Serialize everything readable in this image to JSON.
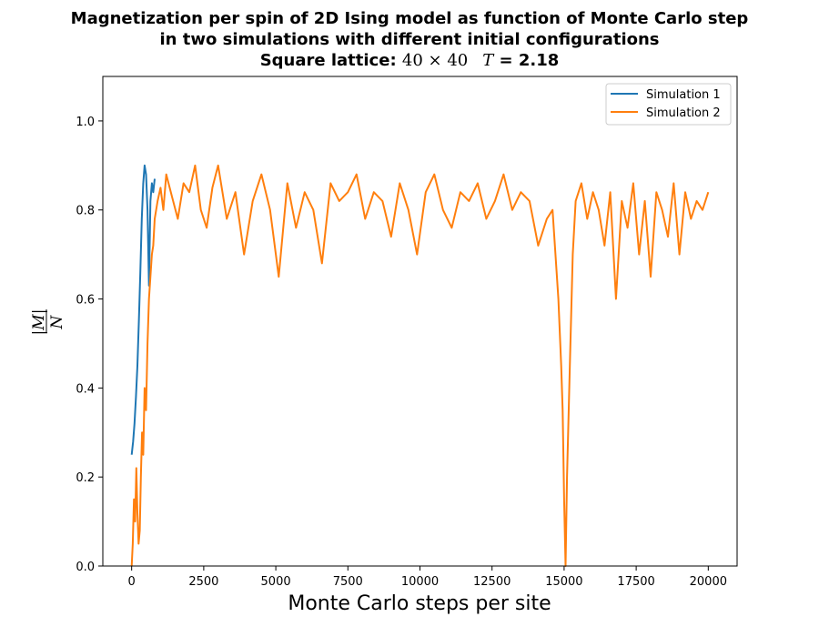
{
  "title": {
    "line1": "Magnetization per spin of 2D Ising model as function of Monte Carlo step",
    "line2": "in two simulations with different initial configurations",
    "line3_prefix": "Square lattice: ",
    "line3_lattice": "40 × 40",
    "line3_T_symbol": "T",
    "line3_T_value": " = 2.18"
  },
  "chart_data": {
    "type": "line",
    "xlabel": "Monte Carlo steps per site",
    "ylabel_num": "|M|",
    "ylabel_den": "N",
    "xlim": [
      -1000,
      21000
    ],
    "ylim": [
      0,
      1.1
    ],
    "xticks": [
      0,
      2500,
      5000,
      7500,
      10000,
      12500,
      15000,
      17500,
      20000
    ],
    "yticks": [
      0.0,
      0.2,
      0.4,
      0.6,
      0.8,
      1.0
    ],
    "xtick_labels": [
      "0",
      "2500",
      "5000",
      "7500",
      "10000",
      "12500",
      "15000",
      "17500",
      "20000"
    ],
    "ytick_labels": [
      "0.0",
      "0.2",
      "0.4",
      "0.6",
      "0.8",
      "1.0"
    ],
    "grid": false,
    "legend_position": "top-right",
    "series": [
      {
        "name": "Simulation 1",
        "color": "#1f77b4",
        "x": [
          0,
          50,
          100,
          150,
          200,
          250,
          300,
          350,
          400,
          450,
          500,
          550,
          600,
          650,
          700,
          750,
          800
        ],
        "y": [
          0.25,
          0.28,
          0.32,
          0.38,
          0.45,
          0.55,
          0.66,
          0.78,
          0.86,
          0.9,
          0.88,
          0.8,
          0.63,
          0.82,
          0.86,
          0.84,
          0.87
        ]
      },
      {
        "name": "Simulation 2",
        "color": "#ff7f0e",
        "x": [
          0,
          40,
          80,
          120,
          160,
          200,
          240,
          280,
          320,
          360,
          400,
          450,
          500,
          550,
          600,
          650,
          700,
          750,
          800,
          900,
          1000,
          1100,
          1200,
          1400,
          1600,
          1800,
          2000,
          2200,
          2400,
          2600,
          2800,
          3000,
          3300,
          3600,
          3900,
          4200,
          4500,
          4800,
          5100,
          5400,
          5700,
          6000,
          6300,
          6600,
          6900,
          7200,
          7500,
          7800,
          8100,
          8400,
          8700,
          9000,
          9300,
          9600,
          9900,
          10200,
          10500,
          10800,
          11100,
          11400,
          11700,
          12000,
          12300,
          12600,
          12900,
          13200,
          13500,
          13800,
          14100,
          14400,
          14600,
          14700,
          14800,
          14900,
          14950,
          15000,
          15050,
          15100,
          15200,
          15300,
          15400,
          15600,
          15800,
          16000,
          16200,
          16400,
          16600,
          16800,
          17000,
          17200,
          17400,
          17600,
          17800,
          18000,
          18200,
          18400,
          18600,
          18800,
          19000,
          19200,
          19400,
          19600,
          19800,
          20000
        ],
        "y": [
          0.0,
          0.05,
          0.15,
          0.1,
          0.22,
          0.12,
          0.05,
          0.08,
          0.2,
          0.3,
          0.25,
          0.4,
          0.35,
          0.5,
          0.6,
          0.65,
          0.7,
          0.72,
          0.78,
          0.82,
          0.85,
          0.8,
          0.88,
          0.83,
          0.78,
          0.86,
          0.84,
          0.9,
          0.8,
          0.76,
          0.85,
          0.9,
          0.78,
          0.84,
          0.7,
          0.82,
          0.88,
          0.8,
          0.65,
          0.86,
          0.76,
          0.84,
          0.8,
          0.68,
          0.86,
          0.82,
          0.84,
          0.88,
          0.78,
          0.84,
          0.82,
          0.74,
          0.86,
          0.8,
          0.7,
          0.84,
          0.88,
          0.8,
          0.76,
          0.84,
          0.82,
          0.86,
          0.78,
          0.82,
          0.88,
          0.8,
          0.84,
          0.82,
          0.72,
          0.78,
          0.8,
          0.7,
          0.6,
          0.45,
          0.35,
          0.15,
          0.0,
          0.2,
          0.45,
          0.7,
          0.82,
          0.86,
          0.78,
          0.84,
          0.8,
          0.72,
          0.84,
          0.6,
          0.82,
          0.76,
          0.86,
          0.7,
          0.82,
          0.65,
          0.84,
          0.8,
          0.74,
          0.86,
          0.7,
          0.84,
          0.78,
          0.82,
          0.8,
          0.84
        ]
      }
    ]
  }
}
